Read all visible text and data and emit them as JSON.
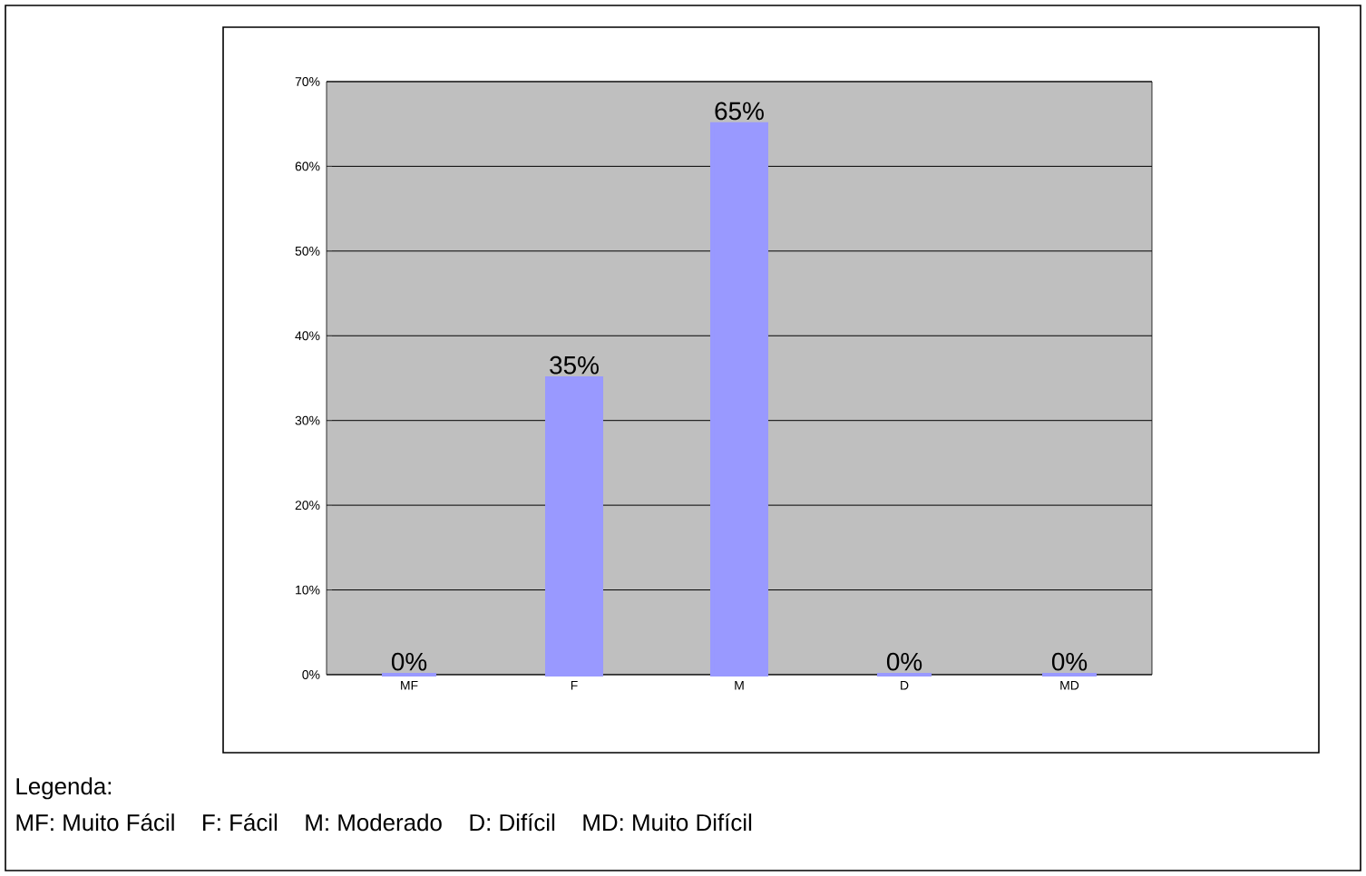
{
  "chart_data": {
    "type": "bar",
    "categories": [
      "MF",
      "F",
      "M",
      "D",
      "MD"
    ],
    "values": [
      0,
      35,
      65,
      0,
      0
    ],
    "color": "#9999ff",
    "value_labels": [
      "0%",
      "35%",
      "65%",
      "0%",
      "0%"
    ],
    "ylim": [
      0,
      70
    ],
    "yticks": [
      {
        "value": 0,
        "label": "0%"
      },
      {
        "value": 10,
        "label": "10%"
      },
      {
        "value": 20,
        "label": "20%"
      },
      {
        "value": 30,
        "label": "30%"
      },
      {
        "value": 40,
        "label": "40%"
      },
      {
        "value": 50,
        "label": "50%"
      },
      {
        "value": 60,
        "label": "60%"
      },
      {
        "value": 70,
        "label": "70%"
      }
    ],
    "grid": "y",
    "annotations": [
      "Legenda:",
      "MF: Muito Fácil",
      "F: Fácil",
      "M: Moderado",
      "D: Difícil",
      "MD: Muito Difícil"
    ]
  }
}
